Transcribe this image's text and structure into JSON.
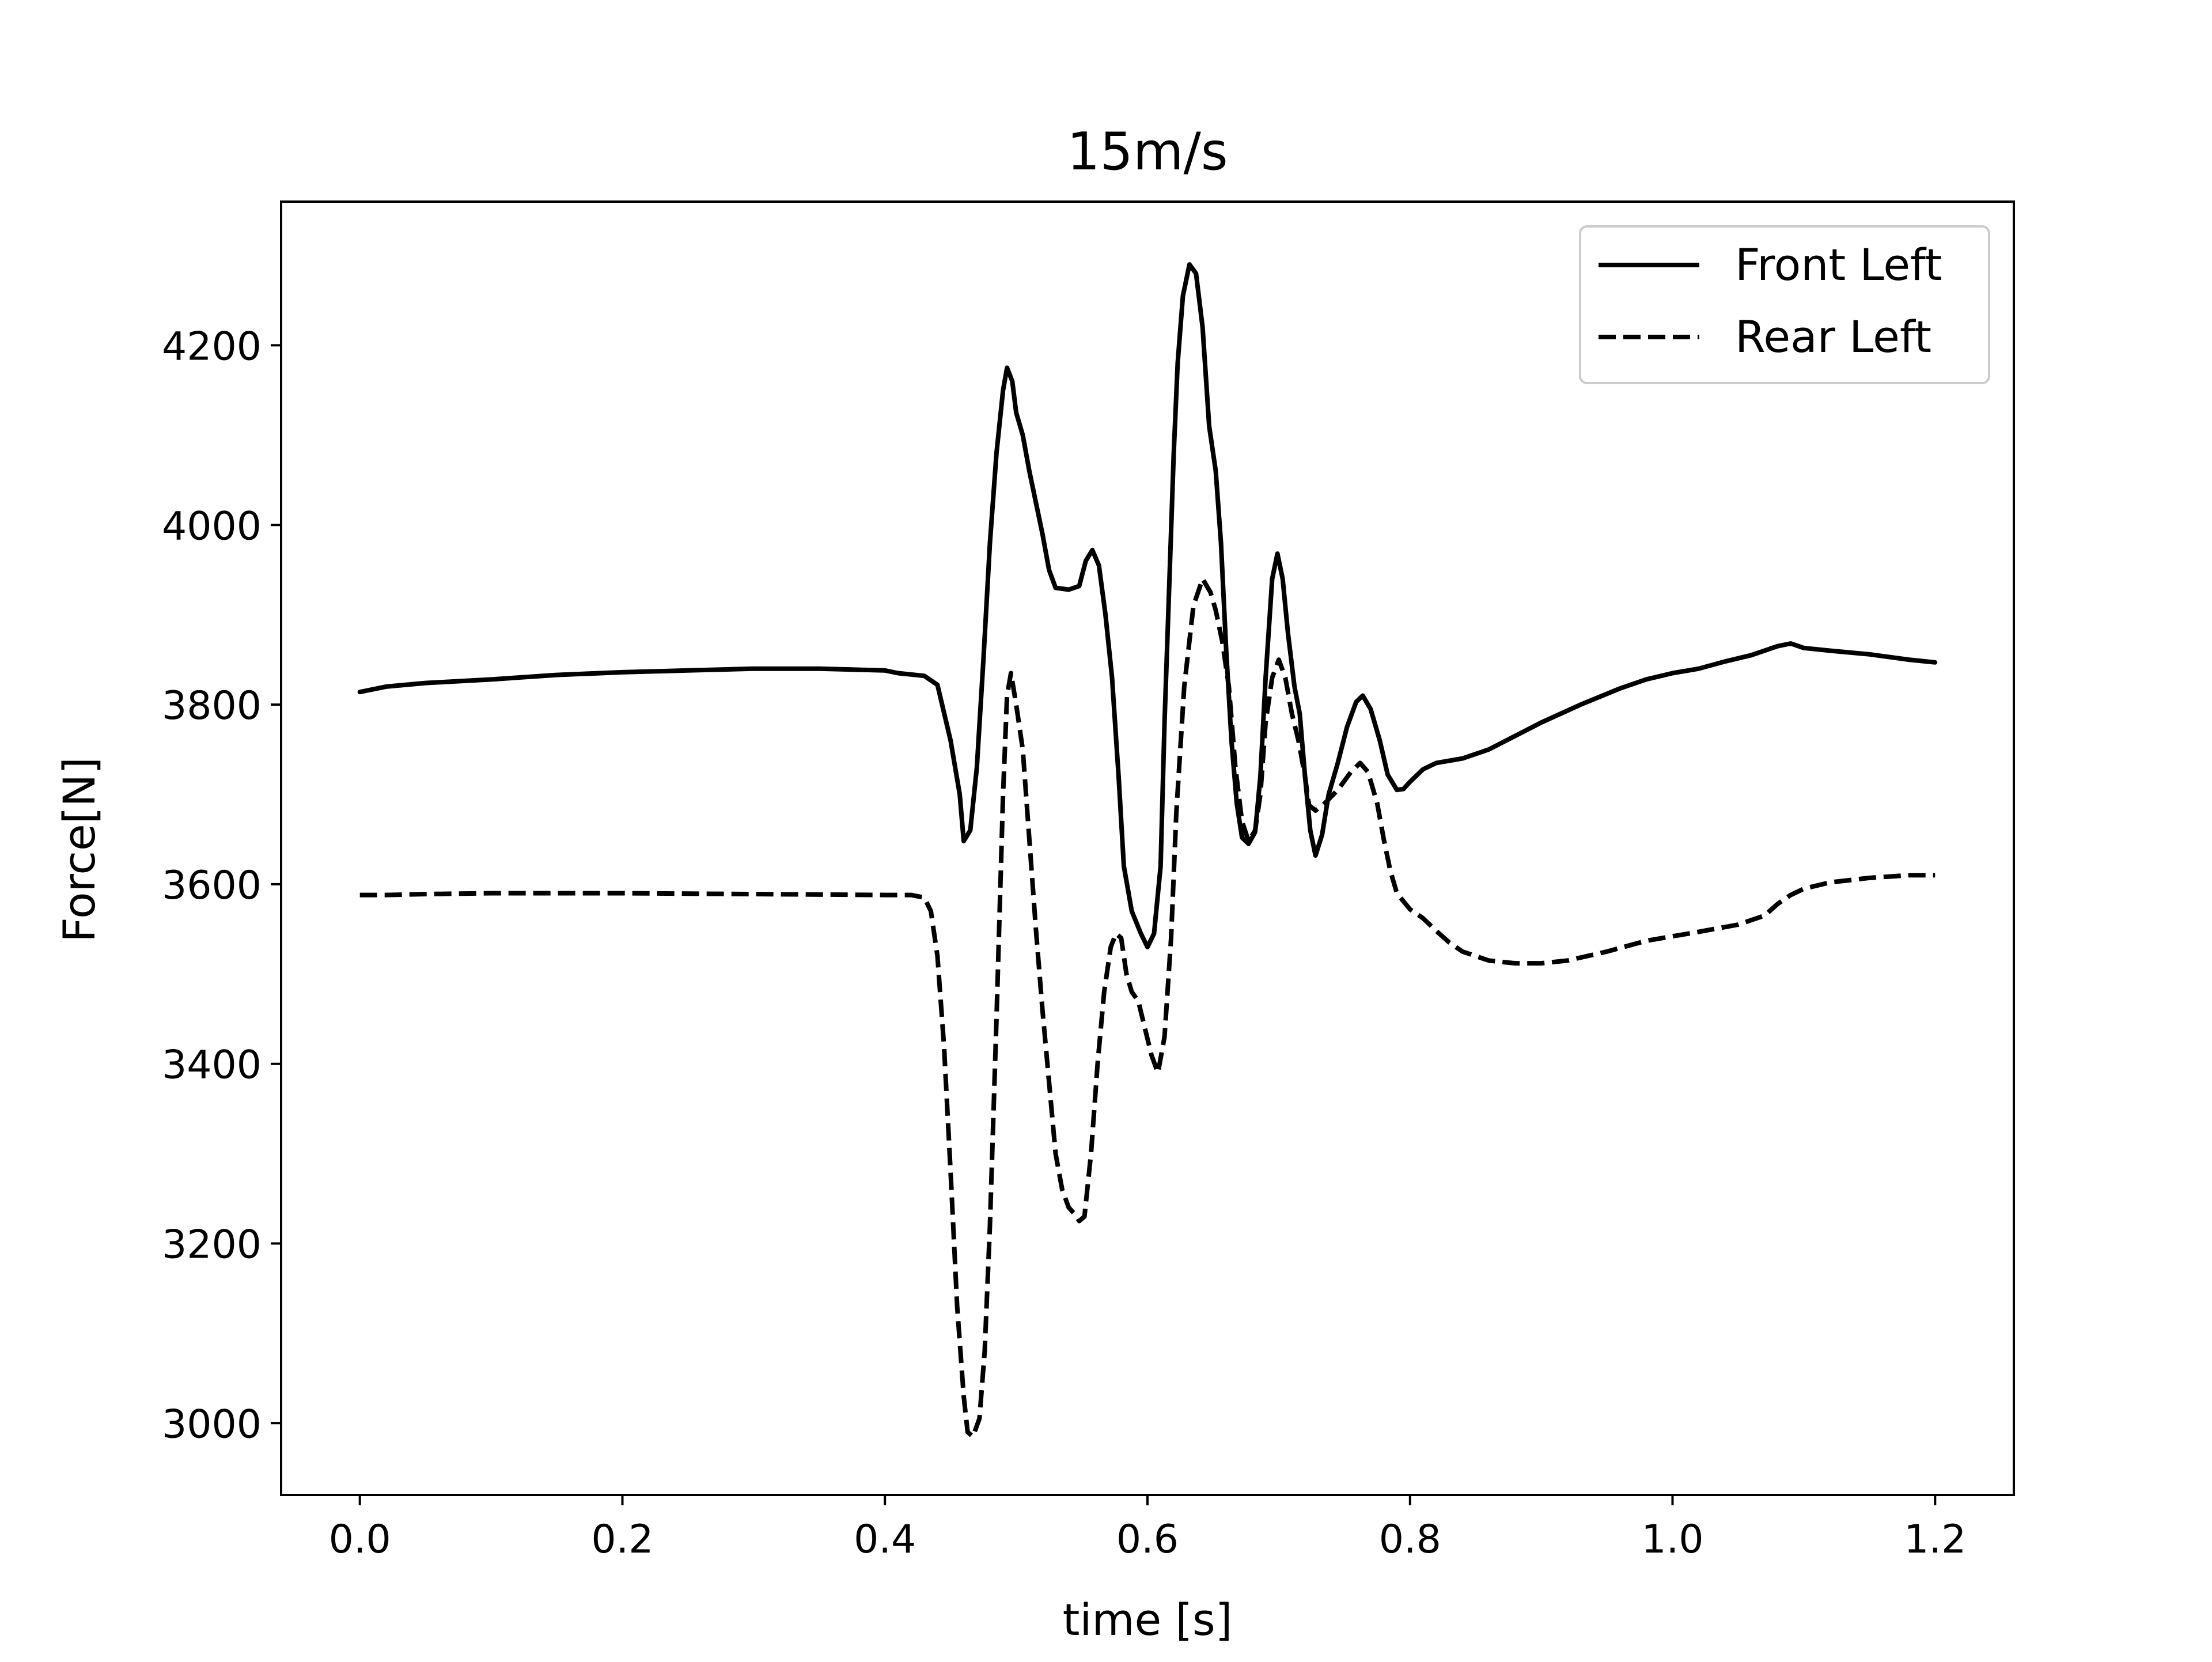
{
  "chart_data": {
    "type": "line",
    "title": "15m/s",
    "xlabel": "time [s]",
    "ylabel": "Force[N]",
    "xlim": [
      -0.06,
      1.26
    ],
    "ylim": [
      2920,
      4360
    ],
    "x_ticks": [
      0.0,
      0.2,
      0.4,
      0.6,
      0.8,
      1.0,
      1.2
    ],
    "x_tick_labels": [
      "0.0",
      "0.2",
      "0.4",
      "0.6",
      "0.8",
      "1.0",
      "1.2"
    ],
    "y_ticks": [
      3000,
      3200,
      3400,
      3600,
      3800,
      4000,
      4200
    ],
    "y_tick_labels": [
      "3000",
      "3200",
      "3400",
      "3600",
      "3800",
      "4000",
      "4200"
    ],
    "grid": false,
    "legend_position": "top-right",
    "series": [
      {
        "name": "Front Left",
        "style": "solid",
        "color": "#000000",
        "points": [
          [
            0.0,
            3814
          ],
          [
            0.02,
            3820
          ],
          [
            0.05,
            3824
          ],
          [
            0.1,
            3828
          ],
          [
            0.15,
            3833
          ],
          [
            0.2,
            3836
          ],
          [
            0.25,
            3838
          ],
          [
            0.3,
            3840
          ],
          [
            0.35,
            3840
          ],
          [
            0.4,
            3838
          ],
          [
            0.41,
            3835
          ],
          [
            0.43,
            3832
          ],
          [
            0.44,
            3822
          ],
          [
            0.45,
            3760
          ],
          [
            0.457,
            3700
          ],
          [
            0.46,
            3648
          ],
          [
            0.465,
            3660
          ],
          [
            0.47,
            3730
          ],
          [
            0.475,
            3850
          ],
          [
            0.48,
            3980
          ],
          [
            0.485,
            4080
          ],
          [
            0.49,
            4150
          ],
          [
            0.493,
            4175
          ],
          [
            0.497,
            4160
          ],
          [
            0.5,
            4125
          ],
          [
            0.505,
            4100
          ],
          [
            0.51,
            4060
          ],
          [
            0.52,
            3990
          ],
          [
            0.525,
            3950
          ],
          [
            0.53,
            3930
          ],
          [
            0.54,
            3928
          ],
          [
            0.548,
            3932
          ],
          [
            0.553,
            3960
          ],
          [
            0.558,
            3972
          ],
          [
            0.563,
            3955
          ],
          [
            0.568,
            3900
          ],
          [
            0.573,
            3830
          ],
          [
            0.578,
            3720
          ],
          [
            0.582,
            3620
          ],
          [
            0.588,
            3570
          ],
          [
            0.595,
            3545
          ],
          [
            0.6,
            3530
          ],
          [
            0.605,
            3545
          ],
          [
            0.61,
            3620
          ],
          [
            0.613,
            3780
          ],
          [
            0.617,
            3950
          ],
          [
            0.62,
            4080
          ],
          [
            0.623,
            4180
          ],
          [
            0.627,
            4255
          ],
          [
            0.632,
            4290
          ],
          [
            0.637,
            4280
          ],
          [
            0.642,
            4220
          ],
          [
            0.647,
            4110
          ],
          [
            0.652,
            4060
          ],
          [
            0.656,
            3980
          ],
          [
            0.66,
            3860
          ],
          [
            0.664,
            3760
          ],
          [
            0.668,
            3690
          ],
          [
            0.672,
            3652
          ],
          [
            0.677,
            3645
          ],
          [
            0.682,
            3658
          ],
          [
            0.686,
            3720
          ],
          [
            0.69,
            3830
          ],
          [
            0.695,
            3940
          ],
          [
            0.699,
            3968
          ],
          [
            0.703,
            3940
          ],
          [
            0.707,
            3880
          ],
          [
            0.712,
            3820
          ],
          [
            0.716,
            3790
          ],
          [
            0.72,
            3720
          ],
          [
            0.724,
            3660
          ],
          [
            0.728,
            3632
          ],
          [
            0.733,
            3655
          ],
          [
            0.738,
            3700
          ],
          [
            0.745,
            3735
          ],
          [
            0.752,
            3775
          ],
          [
            0.759,
            3803
          ],
          [
            0.764,
            3810
          ],
          [
            0.77,
            3795
          ],
          [
            0.777,
            3760
          ],
          [
            0.783,
            3722
          ],
          [
            0.79,
            3705
          ],
          [
            0.795,
            3706
          ],
          [
            0.8,
            3714
          ],
          [
            0.81,
            3728
          ],
          [
            0.82,
            3735
          ],
          [
            0.84,
            3740
          ],
          [
            0.86,
            3750
          ],
          [
            0.88,
            3765
          ],
          [
            0.9,
            3780
          ],
          [
            0.93,
            3800
          ],
          [
            0.96,
            3818
          ],
          [
            0.98,
            3828
          ],
          [
            1.0,
            3835
          ],
          [
            1.02,
            3840
          ],
          [
            1.04,
            3848
          ],
          [
            1.06,
            3855
          ],
          [
            1.08,
            3865
          ],
          [
            1.09,
            3868
          ],
          [
            1.1,
            3863
          ],
          [
            1.12,
            3860
          ],
          [
            1.15,
            3856
          ],
          [
            1.18,
            3850
          ],
          [
            1.2,
            3847
          ]
        ]
      },
      {
        "name": "Rear Left",
        "style": "dashed",
        "color": "#000000",
        "points": [
          [
            0.0,
            3588
          ],
          [
            0.02,
            3588
          ],
          [
            0.05,
            3589
          ],
          [
            0.1,
            3590
          ],
          [
            0.2,
            3590
          ],
          [
            0.3,
            3589
          ],
          [
            0.4,
            3588
          ],
          [
            0.42,
            3588
          ],
          [
            0.43,
            3585
          ],
          [
            0.435,
            3570
          ],
          [
            0.44,
            3520
          ],
          [
            0.445,
            3420
          ],
          [
            0.45,
            3280
          ],
          [
            0.455,
            3130
          ],
          [
            0.46,
            3030
          ],
          [
            0.463,
            2990
          ],
          [
            0.467,
            2985
          ],
          [
            0.472,
            3005
          ],
          [
            0.476,
            3080
          ],
          [
            0.48,
            3220
          ],
          [
            0.485,
            3450
          ],
          [
            0.49,
            3700
          ],
          [
            0.493,
            3810
          ],
          [
            0.496,
            3835
          ],
          [
            0.5,
            3800
          ],
          [
            0.505,
            3750
          ],
          [
            0.51,
            3650
          ],
          [
            0.515,
            3550
          ],
          [
            0.52,
            3460
          ],
          [
            0.525,
            3380
          ],
          [
            0.53,
            3300
          ],
          [
            0.535,
            3260
          ],
          [
            0.54,
            3240
          ],
          [
            0.545,
            3232
          ],
          [
            0.548,
            3225
          ],
          [
            0.552,
            3230
          ],
          [
            0.557,
            3300
          ],
          [
            0.562,
            3400
          ],
          [
            0.567,
            3480
          ],
          [
            0.572,
            3530
          ],
          [
            0.576,
            3545
          ],
          [
            0.58,
            3540
          ],
          [
            0.584,
            3500
          ],
          [
            0.588,
            3480
          ],
          [
            0.593,
            3470
          ],
          [
            0.598,
            3440
          ],
          [
            0.603,
            3410
          ],
          [
            0.608,
            3390
          ],
          [
            0.613,
            3430
          ],
          [
            0.618,
            3540
          ],
          [
            0.622,
            3680
          ],
          [
            0.628,
            3820
          ],
          [
            0.635,
            3910
          ],
          [
            0.642,
            3940
          ],
          [
            0.648,
            3925
          ],
          [
            0.652,
            3905
          ],
          [
            0.657,
            3870
          ],
          [
            0.662,
            3820
          ],
          [
            0.667,
            3730
          ],
          [
            0.672,
            3670
          ],
          [
            0.677,
            3648
          ],
          [
            0.682,
            3660
          ],
          [
            0.686,
            3700
          ],
          [
            0.69,
            3780
          ],
          [
            0.695,
            3830
          ],
          [
            0.7,
            3850
          ],
          [
            0.705,
            3830
          ],
          [
            0.71,
            3790
          ],
          [
            0.715,
            3760
          ],
          [
            0.72,
            3720
          ],
          [
            0.723,
            3688
          ],
          [
            0.728,
            3682
          ],
          [
            0.735,
            3690
          ],
          [
            0.745,
            3705
          ],
          [
            0.755,
            3725
          ],
          [
            0.762,
            3735
          ],
          [
            0.768,
            3725
          ],
          [
            0.775,
            3690
          ],
          [
            0.78,
            3650
          ],
          [
            0.785,
            3615
          ],
          [
            0.79,
            3590
          ],
          [
            0.8,
            3572
          ],
          [
            0.81,
            3562
          ],
          [
            0.82,
            3548
          ],
          [
            0.83,
            3535
          ],
          [
            0.84,
            3525
          ],
          [
            0.86,
            3515
          ],
          [
            0.88,
            3512
          ],
          [
            0.9,
            3512
          ],
          [
            0.92,
            3515
          ],
          [
            0.95,
            3525
          ],
          [
            0.98,
            3537
          ],
          [
            1.0,
            3542
          ],
          [
            1.02,
            3547
          ],
          [
            1.05,
            3555
          ],
          [
            1.07,
            3565
          ],
          [
            1.08,
            3578
          ],
          [
            1.09,
            3588
          ],
          [
            1.1,
            3595
          ],
          [
            1.12,
            3602
          ],
          [
            1.15,
            3607
          ],
          [
            1.18,
            3610
          ],
          [
            1.2,
            3610
          ]
        ]
      }
    ]
  }
}
